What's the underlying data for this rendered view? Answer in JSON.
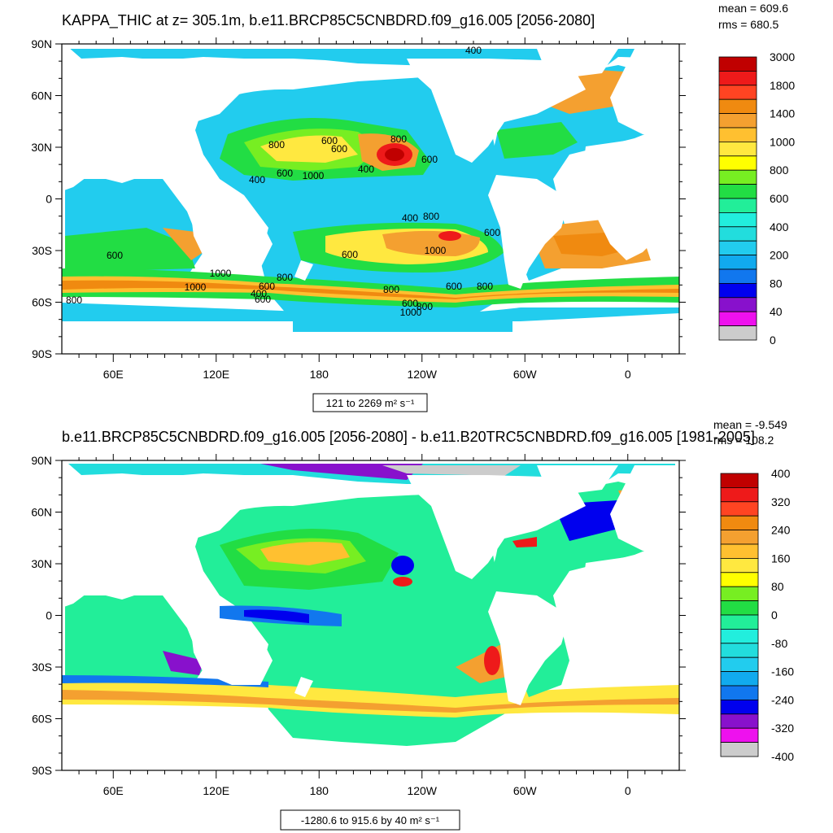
{
  "panels": [
    {
      "title": "KAPPA_THIC at z= 305.1m, b.e11.BRCP85C5CNBDRD.f09_g16.005 [2056-2080]",
      "mean_label": "mean = 609.6",
      "rms_label": "rms = 680.5",
      "range_label": "121 to 2269 m² s⁻¹",
      "contour_labels": [
        "400",
        "800",
        "600",
        "600",
        "800",
        "600",
        "1000",
        "400",
        "400",
        "600",
        "400",
        "800",
        "600",
        "600",
        "1000",
        "600",
        "1000",
        "1000",
        "800",
        "600",
        "800",
        "600",
        "800",
        "600",
        "1000",
        "800",
        "400",
        "600",
        "800"
      ]
    },
    {
      "title": "b.e11.BRCP85C5CNBDRD.f09_g16.005 [2056-2080] - b.e11.B20TRC5CNBDRD.f09_g16.005 [1981-2005]",
      "mean_label": "mean = -9.549",
      "rms_label": "rms = 108.2",
      "range_label": "-1280.6 to 915.6 by 40 m² s⁻¹"
    }
  ],
  "chart_data": [
    {
      "type": "heatmap",
      "title": "KAPPA_THIC at z= 305.1m, b.e11.BRCP85C5CNBDRD.f09_g16.005 [2056-2080]",
      "units": "m² s⁻¹",
      "mean": 609.6,
      "rms": 680.5,
      "min": 121,
      "max": 2269,
      "y_ticks": [
        "90N",
        "60N",
        "30N",
        "0",
        "30S",
        "60S",
        "90S"
      ],
      "x_ticks": [
        "60E",
        "120E",
        "180",
        "120W",
        "60W",
        "0"
      ],
      "ylim": [
        -90,
        90
      ],
      "xlim": [
        30,
        390
      ],
      "colorbar_levels": [
        "3000",
        "1800",
        "1400",
        "1000",
        "800",
        "600",
        "400",
        "200",
        "80",
        "40",
        "0"
      ],
      "colorbar_colors": [
        "#c00000",
        "#ee1a1a",
        "#ff4422",
        "#f08a10",
        "#f4a030",
        "#ffc030",
        "#ffe840",
        "#ffff00",
        "#77ee22",
        "#22dd44",
        "#22ee99",
        "#22eedd",
        "#22dddd",
        "#22ccee",
        "#11aaee",
        "#1177ee",
        "#0000ee",
        "#8811cc",
        "#ee11ee",
        "#cccccc",
        "#777777"
      ],
      "contour_interval_note": "contour lines with labels at 400, 600, 800, 1000"
    },
    {
      "type": "heatmap",
      "title": "b.e11.BRCP85C5CNBDRD.f09_g16.005 [2056-2080] - b.e11.B20TRC5CNBDRD.f09_g16.005 [1981-2005]",
      "units": "m² s⁻¹",
      "mean": -9.549,
      "rms": 108.2,
      "min": -1280.6,
      "max": 915.6,
      "contour_interval": 40,
      "y_ticks": [
        "90N",
        "60N",
        "30N",
        "0",
        "30S",
        "60S",
        "90S"
      ],
      "x_ticks": [
        "60E",
        "120E",
        "180",
        "120W",
        "60W",
        "0"
      ],
      "ylim": [
        -90,
        90
      ],
      "xlim": [
        30,
        390
      ],
      "colorbar_levels": [
        "400",
        "320",
        "240",
        "160",
        "80",
        "0",
        "-80",
        "-160",
        "-240",
        "-320",
        "-400"
      ],
      "colorbar_colors": [
        "#c00000",
        "#ee1a1a",
        "#ff4422",
        "#f08a10",
        "#f4a030",
        "#ffc030",
        "#ffe840",
        "#ffff00",
        "#77ee22",
        "#22dd44",
        "#22ee99",
        "#22eedd",
        "#22dddd",
        "#22ccee",
        "#11aaee",
        "#1177ee",
        "#0000ee",
        "#8811cc",
        "#ee11ee",
        "#cccccc",
        "#777777"
      ]
    }
  ]
}
